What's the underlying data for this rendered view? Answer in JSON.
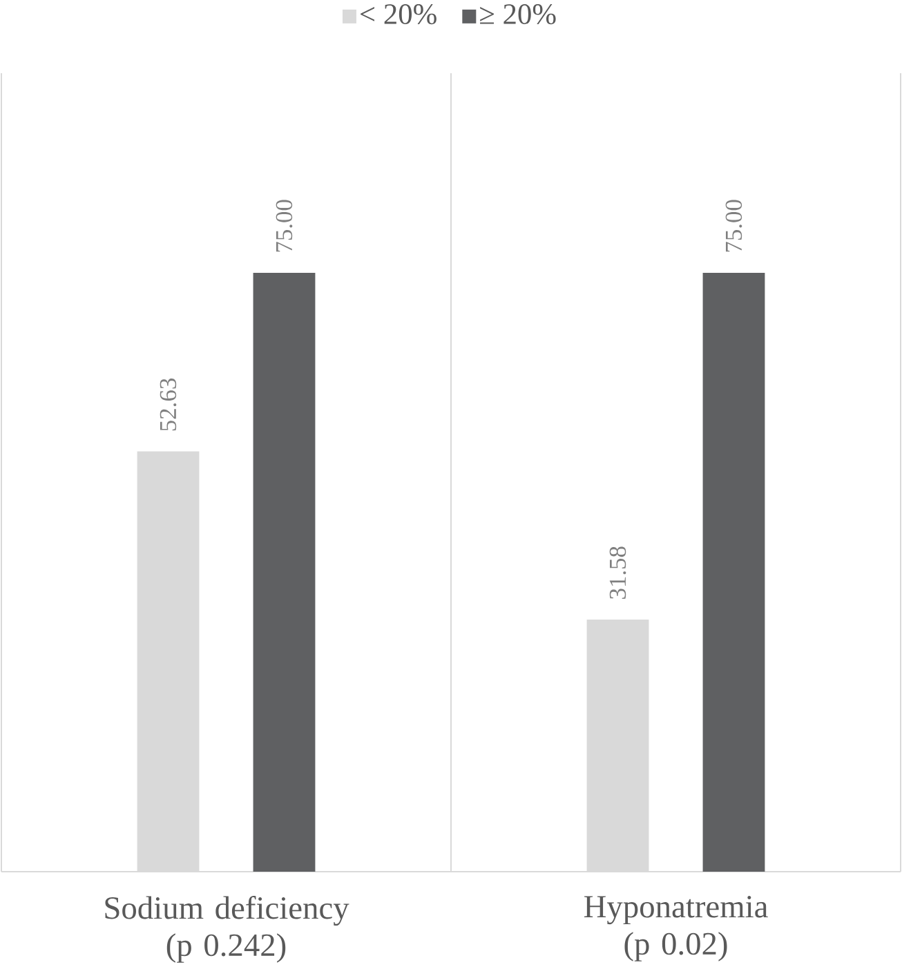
{
  "chart_data": {
    "type": "bar",
    "categories": [
      "Sodium deficiency (p 0.242)",
      "Hyponatremia (p 0.02)"
    ],
    "series": [
      {
        "name": "< 20%",
        "color": "#d9d9d9",
        "values": [
          52.63,
          31.58
        ],
        "value_labels": [
          "52.63",
          "31.58"
        ]
      },
      {
        "name": "≥ 20%",
        "color": "#5f6062",
        "values": [
          75,
          75
        ],
        "value_labels": [
          "75.00",
          "75.00"
        ]
      }
    ],
    "ylim": [
      0,
      100
    ],
    "tick_labels": "x",
    "grid": "x",
    "legend": "top"
  }
}
